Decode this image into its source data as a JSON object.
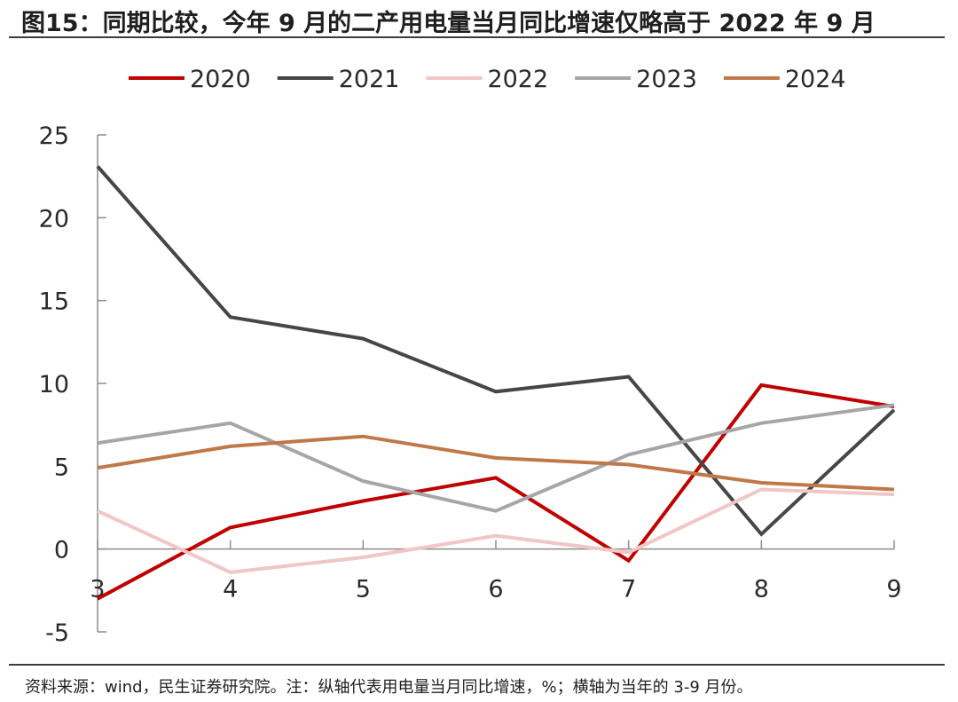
{
  "title": "图15：同期比较，今年 9 月的二产用电量当月同比增速仅略高于 2022 年 9 月",
  "source": "资料来源：wind，民生证券研究院。注：纵轴代表用电量当月同比增速，%；横轴为当年的 3-9 月份。",
  "chart_data": {
    "type": "line",
    "x": [
      3,
      4,
      5,
      6,
      7,
      8,
      9
    ],
    "ylim": [
      -5,
      25
    ],
    "yticks": [
      -5,
      0,
      5,
      10,
      15,
      20,
      25
    ],
    "grid": false,
    "legend_position": "top",
    "series": [
      {
        "name": "2020",
        "color": "#c00000",
        "values": [
          -3.0,
          1.3,
          2.9,
          4.3,
          -0.7,
          9.9,
          8.6
        ]
      },
      {
        "name": "2021",
        "color": "#464646",
        "values": [
          23.1,
          14.0,
          12.7,
          9.5,
          10.4,
          0.9,
          8.4
        ]
      },
      {
        "name": "2022",
        "color": "#f1c6c6",
        "values": [
          2.3,
          -1.4,
          -0.5,
          0.8,
          -0.2,
          3.6,
          3.3
        ]
      },
      {
        "name": "2023",
        "color": "#a6a6a6",
        "values": [
          6.4,
          7.6,
          4.1,
          2.3,
          5.7,
          7.6,
          8.7
        ]
      },
      {
        "name": "2024",
        "color": "#c0784a",
        "values": [
          4.9,
          6.2,
          6.8,
          5.5,
          5.1,
          4.0,
          3.6
        ]
      }
    ]
  }
}
